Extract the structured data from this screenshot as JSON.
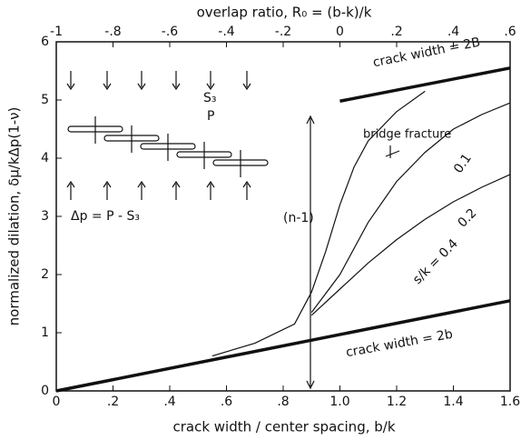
{
  "chart_data": {
    "type": "line",
    "xlabel": "crack width / center spacing, b/k",
    "ylabel": "normalized dilation, δμ/kΔp(1-ν)",
    "x2label": "overlap ratio, R₀ = (b-k)/k",
    "xlim": [
      0,
      1.6
    ],
    "ylim": [
      0,
      6
    ],
    "xticks": [
      0,
      {
        "value": 0.2,
        "label": ".2"
      },
      {
        "value": 0.4,
        "label": ".4"
      },
      {
        "value": 0.6,
        "label": ".6"
      },
      {
        "value": 0.8,
        "label": ".8"
      },
      {
        "value": 1.0,
        "label": "1.0"
      },
      1.2,
      1.4,
      1.6
    ],
    "x2lim": [
      -1,
      0.6
    ],
    "x2ticks": [
      -1,
      {
        "value": -0.8,
        "label": "-.8"
      },
      {
        "value": -0.6,
        "label": "-.6"
      },
      {
        "value": -0.4,
        "label": "-.4"
      },
      {
        "value": -0.2,
        "label": "-.2"
      },
      0,
      {
        "value": 0.2,
        "label": ".2"
      },
      {
        "value": 0.4,
        "label": ".4"
      },
      {
        "value": 0.6,
        "label": ".6"
      }
    ],
    "yticks": [
      0,
      1,
      2,
      3,
      4,
      5,
      6
    ],
    "series": [
      {
        "name": "crack width = 2B",
        "color": "#111",
        "x": [
          1.0,
          1.6
        ],
        "values": [
          4.98,
          5.55
        ]
      },
      {
        "name": "crack width = 2b",
        "color": "#111",
        "x": [
          0,
          1.6
        ],
        "values": [
          0,
          1.55
        ]
      },
      {
        "name": "0.1",
        "color": "#111",
        "x": [
          0.55,
          0.7,
          0.84,
          0.9,
          0.95,
          1.0,
          1.05,
          1.1,
          1.2,
          1.3
        ],
        "values": [
          0.6,
          0.82,
          1.15,
          1.7,
          2.4,
          3.2,
          3.85,
          4.3,
          4.8,
          5.15
        ]
      },
      {
        "name": "0.2",
        "color": "#111",
        "x": [
          0.9,
          1.0,
          1.1,
          1.2,
          1.3,
          1.4,
          1.5,
          1.6
        ],
        "values": [
          1.35,
          2.0,
          2.9,
          3.6,
          4.1,
          4.5,
          4.75,
          4.95
        ]
      },
      {
        "name": "s/k = 0.4",
        "color": "#111",
        "x": [
          0.9,
          1.0,
          1.1,
          1.2,
          1.3,
          1.4,
          1.5,
          1.6
        ],
        "values": [
          1.3,
          1.75,
          2.2,
          2.6,
          2.95,
          3.25,
          3.5,
          3.72
        ]
      }
    ],
    "annotations": [
      "bridge fracture",
      "(n-1)",
      "S₃",
      "P",
      "Δp = P - S₃"
    ]
  }
}
